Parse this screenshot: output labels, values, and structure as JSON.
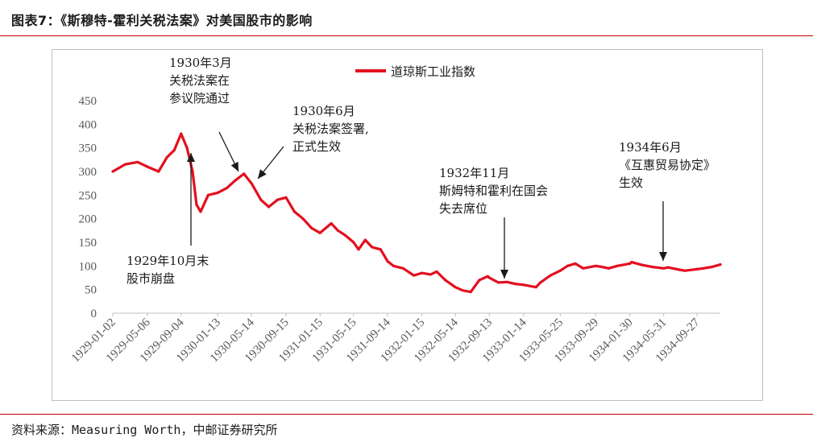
{
  "header": {
    "title": "图表7：《斯穆特-霍利关税法案》对美国股市的影响"
  },
  "footer": {
    "source": "资料来源：Measuring Worth，中邮证券研究所"
  },
  "colors": {
    "rule": "#c00000",
    "series": "#e3101f",
    "axis": "#bfbfbf"
  },
  "chart_data": {
    "type": "line",
    "title": "",
    "xlabel": "",
    "ylabel": "",
    "ylim": [
      0,
      450
    ],
    "yticks": [
      0,
      50,
      100,
      150,
      200,
      250,
      300,
      350,
      400,
      450
    ],
    "xticks": [
      "1929-01-02",
      "1929-05-06",
      "1929-09-04",
      "1930-01-13",
      "1930-05-14",
      "1930-09-15",
      "1931-01-15",
      "1931-05-15",
      "1931-09-14",
      "1932-01-15",
      "1932-05-14",
      "1932-09-13",
      "1933-01-14",
      "1933-05-25",
      "1933-09-29",
      "1934-01-30",
      "1934-05-31",
      "1934-09-27"
    ],
    "grid": false,
    "legend": "top",
    "series": [
      {
        "name": "道琼斯工业指数",
        "x": [
          "1929-01-02",
          "1929-02-15",
          "1929-04-01",
          "1929-05-06",
          "1929-06-15",
          "1929-07-15",
          "1929-08-10",
          "1929-09-04",
          "1929-09-25",
          "1929-10-15",
          "1929-10-29",
          "1929-11-13",
          "1929-12-10",
          "1930-01-13",
          "1930-02-15",
          "1930-03-15",
          "1930-04-17",
          "1930-05-14",
          "1930-06-17",
          "1930-07-15",
          "1930-08-15",
          "1930-09-15",
          "1930-10-15",
          "1930-11-15",
          "1930-12-16",
          "1931-01-15",
          "1931-02-24",
          "1931-03-20",
          "1931-04-15",
          "1931-05-15",
          "1931-06-02",
          "1931-06-26",
          "1931-07-20",
          "1931-08-20",
          "1931-09-14",
          "1931-10-05",
          "1931-11-09",
          "1931-12-17",
          "1932-01-15",
          "1932-02-15",
          "1932-03-08",
          "1932-04-08",
          "1932-05-14",
          "1932-06-10",
          "1932-07-08",
          "1932-08-08",
          "1932-09-07",
          "1932-09-13",
          "1932-10-15",
          "1932-11-15",
          "1932-12-15",
          "1933-01-14",
          "1933-02-27",
          "1933-03-15",
          "1933-04-20",
          "1933-05-25",
          "1933-06-20",
          "1933-07-18",
          "1933-08-15",
          "1933-09-29",
          "1933-10-21",
          "1933-11-15",
          "1933-12-15",
          "1934-01-30",
          "1934-02-05",
          "1934-03-15",
          "1934-04-20",
          "1934-05-31",
          "1934-06-15",
          "1934-07-26",
          "1934-08-15",
          "1934-09-27",
          "1934-10-20",
          "1934-11-20",
          "1934-12-20"
        ],
        "values": [
          300,
          315,
          320,
          310,
          300,
          330,
          345,
          380,
          350,
          300,
          230,
          215,
          250,
          255,
          265,
          280,
          295,
          275,
          240,
          225,
          240,
          245,
          215,
          200,
          180,
          170,
          190,
          175,
          165,
          150,
          135,
          155,
          140,
          135,
          110,
          100,
          95,
          80,
          85,
          82,
          88,
          70,
          55,
          48,
          45,
          70,
          78,
          75,
          65,
          66,
          62,
          60,
          55,
          65,
          80,
          90,
          100,
          105,
          95,
          100,
          98,
          95,
          100,
          105,
          108,
          102,
          98,
          95,
          97,
          92,
          90,
          93,
          95,
          98,
          103
        ]
      }
    ],
    "annotations": [
      {
        "lines": [
          "1930年3月",
          "关税法案在",
          "参议院通过"
        ],
        "date": "1930-04-17"
      },
      {
        "lines": [
          "1930年6月",
          "关税法案签署,",
          "正式生效"
        ],
        "date": "1930-06-17"
      },
      {
        "lines": [
          "1929年10月末",
          "股市崩盘"
        ],
        "date": "1929-10-29"
      },
      {
        "lines": [
          "1932年11月",
          "斯姆特和霍利在国会",
          "失去席位"
        ],
        "date": "1932-11-15"
      },
      {
        "lines": [
          "1934年6月",
          "《互惠贸易协定》",
          "生效"
        ],
        "date": "1934-06-15"
      }
    ]
  }
}
